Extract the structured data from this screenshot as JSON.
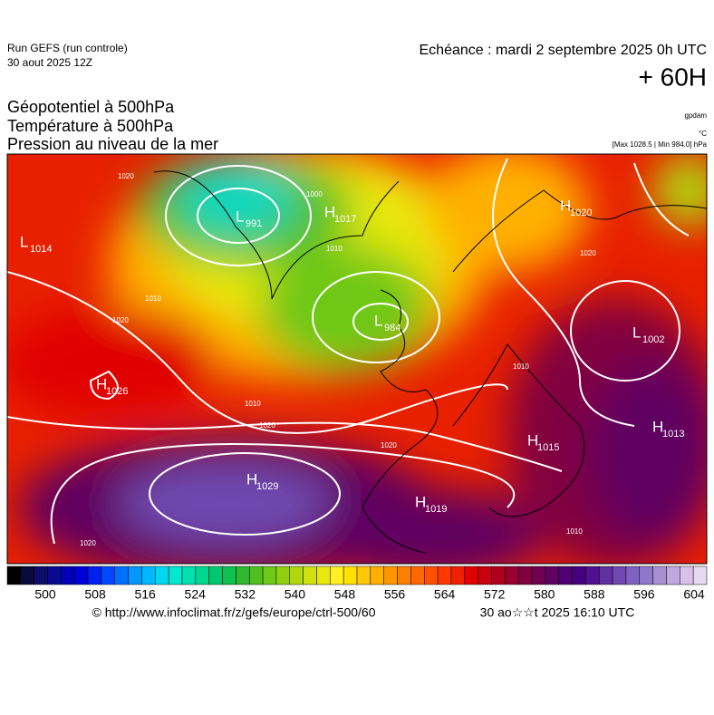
{
  "header": {
    "run": "Run GEFS (run controle)",
    "date": "30 aout 2025 12Z",
    "echeance": "Echéance : mardi 2 septembre 2025 0h UTC",
    "lead": "+ 60H"
  },
  "fields": [
    "Géopotentiel à 500hPa",
    "Température à 500hPa",
    "Pression au niveau de la mer"
  ],
  "units": [
    "gpdam",
    "°C",
    "[Max 1028.5 | Min 984.0] hPa"
  ],
  "centers": [
    {
      "kind": "L",
      "value": 1014
    },
    {
      "kind": "L",
      "value": 991
    },
    {
      "kind": "H",
      "value": 1017
    },
    {
      "kind": "H",
      "value": 1020
    },
    {
      "kind": "L",
      "value": 984
    },
    {
      "kind": "L",
      "value": 1002
    },
    {
      "kind": "H",
      "value": 1026
    },
    {
      "kind": "H",
      "value": 1029
    },
    {
      "kind": "H",
      "value": 1019
    },
    {
      "kind": "H",
      "value": 1015
    },
    {
      "kind": "H",
      "value": 1013
    }
  ],
  "isobar_labels": [
    1020,
    1010,
    1020,
    1000,
    1010,
    1020,
    1010,
    1020,
    1020,
    1010,
    1010,
    1020
  ],
  "colorbar": {
    "ticks": [
      500,
      508,
      516,
      524,
      532,
      540,
      548,
      556,
      564,
      572,
      580,
      588,
      596,
      604
    ],
    "colors": [
      "#000000",
      "#0a0a3c",
      "#0c0c6a",
      "#0a0a90",
      "#0000b4",
      "#0000d8",
      "#0020f0",
      "#0048ff",
      "#0070ff",
      "#0098ff",
      "#00b8ff",
      "#00d8f0",
      "#00e8d0",
      "#00e0b0",
      "#00d890",
      "#00c870",
      "#10c050",
      "#30b830",
      "#50c020",
      "#70c818",
      "#90d010",
      "#b0d810",
      "#d0e010",
      "#e8e810",
      "#fff020",
      "#ffe000",
      "#ffc800",
      "#ffb000",
      "#ff9800",
      "#ff8000",
      "#ff6800",
      "#ff5000",
      "#ff3800",
      "#f02000",
      "#e00000",
      "#c80010",
      "#b00020",
      "#980030",
      "#800040",
      "#700050",
      "#600060",
      "#500070",
      "#480080",
      "#501090",
      "#6030a0",
      "#7048b0",
      "#8060c0",
      "#9078c8",
      "#a890d0",
      "#c0a8dc",
      "#d8c0e8",
      "#e8d8f0"
    ]
  },
  "footer": {
    "source": "© http://www.infoclimat.fr/z/gefs/europe/ctrl-500/60",
    "generated": "30 ao☆☆t 2025 16:10 UTC"
  }
}
